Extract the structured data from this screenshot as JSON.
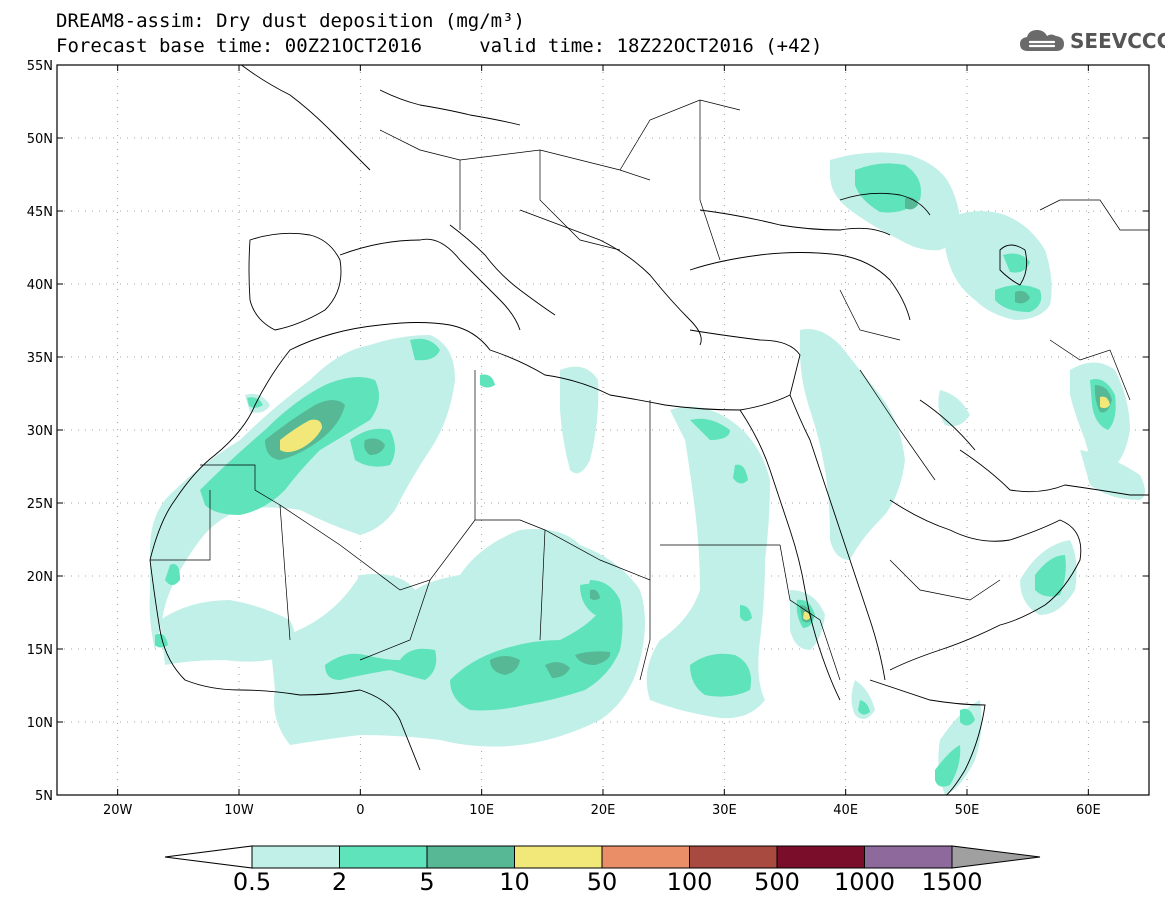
{
  "title": {
    "line1": "DREAM8-assim: Dry dust deposition (mg/m³)",
    "line2": "Forecast base time: 00Z21OCT2016     valid time: 18Z22OCT2016 (+42)"
  },
  "logo": {
    "text": "SEEVCCC",
    "icon": "cloud-logo-icon"
  },
  "map": {
    "lat_labels": [
      "55N",
      "50N",
      "45N",
      "40N",
      "35N",
      "30N",
      "25N",
      "20N",
      "15N",
      "10N",
      "5N"
    ],
    "lon_labels": [
      "20W",
      "10W",
      "0",
      "10E",
      "20E",
      "30E",
      "40E",
      "50E",
      "60E"
    ]
  },
  "colorbar": {
    "labels": [
      "0.5",
      "2",
      "5",
      "10",
      "50",
      "100",
      "500",
      "1000",
      "1500"
    ],
    "colors": [
      "#c1f0e8",
      "#5ee3bb",
      "#56b895",
      "#f2e87a",
      "#ea8e68",
      "#a94a40",
      "#7a0e2a",
      "#8e6a9c"
    ],
    "under_color": "#ffffff",
    "over_color": "#a0a0a0"
  },
  "dust_colors": {
    "level1": "#c1f0e8",
    "level2": "#5ee3bb",
    "level3": "#56b895",
    "level4": "#f2e87a"
  }
}
